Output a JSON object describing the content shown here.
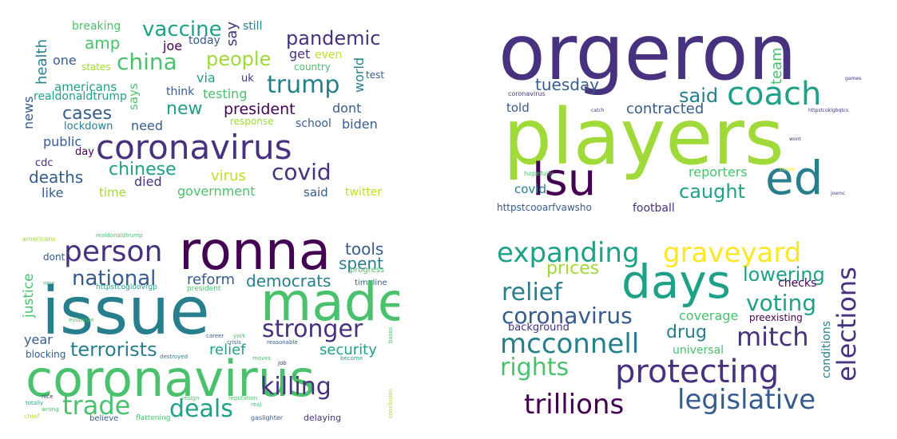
{
  "palette": {
    "dark": "#440154",
    "indigo": "#46327e",
    "blue": "#365c8d",
    "teal": "#277f8e",
    "green": "#1fa187",
    "lime": "#4ac16d",
    "yellowgreen": "#a0da39",
    "yellow": "#fde725"
  },
  "clouds": [
    {
      "name": "cloud-1",
      "words": [
        {
          "t": "breaking",
          "c": "#4ac16d"
        },
        {
          "t": "vaccine",
          "c": "#1fa187"
        },
        {
          "t": "say",
          "c": "#46327e"
        },
        {
          "t": "still",
          "c": "#277f8e"
        },
        {
          "t": "amp",
          "c": "#4ac16d"
        },
        {
          "t": "joe",
          "c": "#440154"
        },
        {
          "t": "today",
          "c": "#365c8d"
        },
        {
          "t": "pandemic",
          "c": "#46327e"
        },
        {
          "t": "health",
          "c": "#277f8e"
        },
        {
          "t": "china",
          "c": "#4ac16d"
        },
        {
          "t": "people",
          "c": "#a0da39"
        },
        {
          "t": "get",
          "c": "#46327e"
        },
        {
          "t": "even",
          "c": "#c0df25"
        },
        {
          "t": "world",
          "c": "#277f8e"
        },
        {
          "t": "one",
          "c": "#365c8d"
        },
        {
          "t": "states",
          "c": "#a0da39"
        },
        {
          "t": "country",
          "c": "#4ac16d"
        },
        {
          "t": "test",
          "c": "#365c8d"
        },
        {
          "t": "americans",
          "c": "#1fa187"
        },
        {
          "t": "via",
          "c": "#1fa187"
        },
        {
          "t": "uk",
          "c": "#46327e"
        },
        {
          "t": "trump",
          "c": "#277f8e"
        },
        {
          "t": "realdonaldtrump",
          "c": "#1fa187"
        },
        {
          "t": "says",
          "c": "#4ac16d"
        },
        {
          "t": "think",
          "c": "#365c8d"
        },
        {
          "t": "testing",
          "c": "#4ac16d"
        },
        {
          "t": "news",
          "c": "#365c8d"
        },
        {
          "t": "new",
          "c": "#1fa187"
        },
        {
          "t": "president",
          "c": "#440154"
        },
        {
          "t": "dont",
          "c": "#365c8d"
        },
        {
          "t": "cases",
          "c": "#365c8d"
        },
        {
          "t": "lockdown",
          "c": "#277f8e"
        },
        {
          "t": "need",
          "c": "#365c8d"
        },
        {
          "t": "response",
          "c": "#a0da39"
        },
        {
          "t": "school",
          "c": "#365c8d"
        },
        {
          "t": "biden",
          "c": "#365c8d"
        },
        {
          "t": "public",
          "c": "#365c8d"
        },
        {
          "t": "coronavirus",
          "c": "#46327e"
        },
        {
          "t": "day",
          "c": "#440154"
        },
        {
          "t": "cdc",
          "c": "#46327e"
        },
        {
          "t": "chinese",
          "c": "#1fa187"
        },
        {
          "t": "covid",
          "c": "#46327e"
        },
        {
          "t": "deaths",
          "c": "#365c8d"
        },
        {
          "t": "virus",
          "c": "#c0df25"
        },
        {
          "t": "died",
          "c": "#46327e"
        },
        {
          "t": "like",
          "c": "#365c8d"
        },
        {
          "t": "time",
          "c": "#a0da39"
        },
        {
          "t": "government",
          "c": "#4ac16d"
        },
        {
          "t": "said",
          "c": "#365c8d"
        },
        {
          "t": "twitter",
          "c": "#c0df25"
        }
      ]
    },
    {
      "name": "cloud-2",
      "words": [
        {
          "t": "orgeron",
          "c": "#46327e"
        },
        {
          "t": "team",
          "c": "#4ac16d"
        },
        {
          "t": "tuesday",
          "c": "#365c8d"
        },
        {
          "t": "coach",
          "c": "#1fa187"
        },
        {
          "t": "said",
          "c": "#277f8e"
        },
        {
          "t": "coronavirus",
          "c": "#46327e"
        },
        {
          "t": "contracted",
          "c": "#365c8d"
        },
        {
          "t": "told",
          "c": "#365c8d"
        },
        {
          "t": "players",
          "c": "#a0da39"
        },
        {
          "t": "lsu",
          "c": "#440154"
        },
        {
          "t": "ed",
          "c": "#277f8e"
        },
        {
          "t": "reporters",
          "c": "#4ac16d"
        },
        {
          "t": "caught",
          "c": "#1fa187"
        },
        {
          "t": "covid",
          "c": "#277f8e"
        },
        {
          "t": "hopefully",
          "c": "#4ac16d"
        },
        {
          "t": "httpstcooarfvawsho",
          "c": "#365c8d"
        },
        {
          "t": "football",
          "c": "#46327e"
        },
        {
          "t": "joemc",
          "c": "#46327e"
        },
        {
          "t": "catch",
          "c": "#46327e"
        },
        {
          "t": "games",
          "c": "#46327e"
        },
        {
          "t": "httpstcoklgbqtcs",
          "c": "#46327e"
        },
        {
          "t": "wont",
          "c": "#46327e"
        },
        {
          "t": "theyre",
          "c": "#fde725"
        }
      ]
    },
    {
      "name": "cloud-3",
      "words": [
        {
          "t": "americans",
          "c": "#a0da39"
        },
        {
          "t": "realdonaldtrump",
          "c": "#4ac16d"
        },
        {
          "t": "person",
          "c": "#46327e"
        },
        {
          "t": "ronna",
          "c": "#440154"
        },
        {
          "t": "tools",
          "c": "#365c8d"
        },
        {
          "t": "spent",
          "c": "#277f8e"
        },
        {
          "t": "dont",
          "c": "#365c8d"
        },
        {
          "t": "justice",
          "c": "#4ac16d"
        },
        {
          "t": "national",
          "c": "#365c8d"
        },
        {
          "t": "reform",
          "c": "#365c8d"
        },
        {
          "t": "democrats",
          "c": "#277f8e"
        },
        {
          "t": "progress",
          "c": "#4ac16d"
        },
        {
          "t": "timeline",
          "c": "#365c8d"
        },
        {
          "t": "new",
          "c": "#4ac16d"
        },
        {
          "t": "httpstcogldovrgp",
          "c": "#1fa187"
        },
        {
          "t": "president",
          "c": "#4ac16d"
        },
        {
          "t": "made",
          "c": "#4ac16d"
        },
        {
          "t": "issue",
          "c": "#277f8e"
        },
        {
          "t": "evidence",
          "c": "#4ac16d"
        },
        {
          "t": "stronger",
          "c": "#46327e"
        },
        {
          "t": "year",
          "c": "#365c8d"
        },
        {
          "t": "york",
          "c": "#4ac16d"
        },
        {
          "t": "career",
          "c": "#365c8d"
        },
        {
          "t": "crisis",
          "c": "#365c8d"
        },
        {
          "t": "reasonable",
          "c": "#365c8d"
        },
        {
          "t": "terrorists",
          "c": "#277f8e"
        },
        {
          "t": "relief",
          "c": "#1fa187"
        },
        {
          "t": "security",
          "c": "#1fa187"
        },
        {
          "t": "blocking",
          "c": "#365c8d"
        },
        {
          "t": "coronavirus",
          "c": "#4ac16d"
        },
        {
          "t": "destroyed",
          "c": "#277f8e"
        },
        {
          "t": "become",
          "c": "#1fa187"
        },
        {
          "t": "moves",
          "c": "#4ac16d"
        },
        {
          "t": "job",
          "c": "#46327e"
        },
        {
          "t": "bases",
          "c": "#4ac16d"
        },
        {
          "t": "killing",
          "c": "#46327e"
        },
        {
          "t": "trade",
          "c": "#4ac16d"
        },
        {
          "t": "deals",
          "c": "#1fa187"
        },
        {
          "t": "nice",
          "c": "#46327e"
        },
        {
          "t": "totally",
          "c": "#1fa187"
        },
        {
          "t": "wrong",
          "c": "#4ac16d"
        },
        {
          "t": "resign",
          "c": "#4ac16d"
        },
        {
          "t": "reputation",
          "c": "#4ac16d"
        },
        {
          "t": "real",
          "c": "#4ac16d"
        },
        {
          "t": "conclusion",
          "c": "#a0da39"
        },
        {
          "t": "chief",
          "c": "#c0df25"
        },
        {
          "t": "believe",
          "c": "#365c8d"
        },
        {
          "t": "flattening",
          "c": "#4ac16d"
        },
        {
          "t": "gaslighter",
          "c": "#365c8d"
        },
        {
          "t": "delaying",
          "c": "#46327e"
        }
      ]
    },
    {
      "name": "cloud-4",
      "words": [
        {
          "t": "expanding",
          "c": "#1fa187"
        },
        {
          "t": "graveyard",
          "c": "#fde725"
        },
        {
          "t": "prices",
          "c": "#a0da39"
        },
        {
          "t": "lowering",
          "c": "#1fa187"
        },
        {
          "t": "relief",
          "c": "#277f8e"
        },
        {
          "t": "days",
          "c": "#1fa187"
        },
        {
          "t": "checks",
          "c": "#440154"
        },
        {
          "t": "elections",
          "c": "#46327e"
        },
        {
          "t": "voting",
          "c": "#1fa187"
        },
        {
          "t": "coronavirus",
          "c": "#365c8d"
        },
        {
          "t": "coverage",
          "c": "#4ac16d"
        },
        {
          "t": "preexisting",
          "c": "#440154"
        },
        {
          "t": "background",
          "c": "#46327e"
        },
        {
          "t": "drug",
          "c": "#277f8e"
        },
        {
          "t": "mcconnell",
          "c": "#277f8e"
        },
        {
          "t": "mitch",
          "c": "#46327e"
        },
        {
          "t": "universal",
          "c": "#4ac16d"
        },
        {
          "t": "conditions",
          "c": "#277f8e"
        },
        {
          "t": "rights",
          "c": "#4ac16d"
        },
        {
          "t": "protecting",
          "c": "#46327e"
        },
        {
          "t": "trillions",
          "c": "#440154"
        },
        {
          "t": "legislative",
          "c": "#365c8d"
        }
      ]
    }
  ]
}
